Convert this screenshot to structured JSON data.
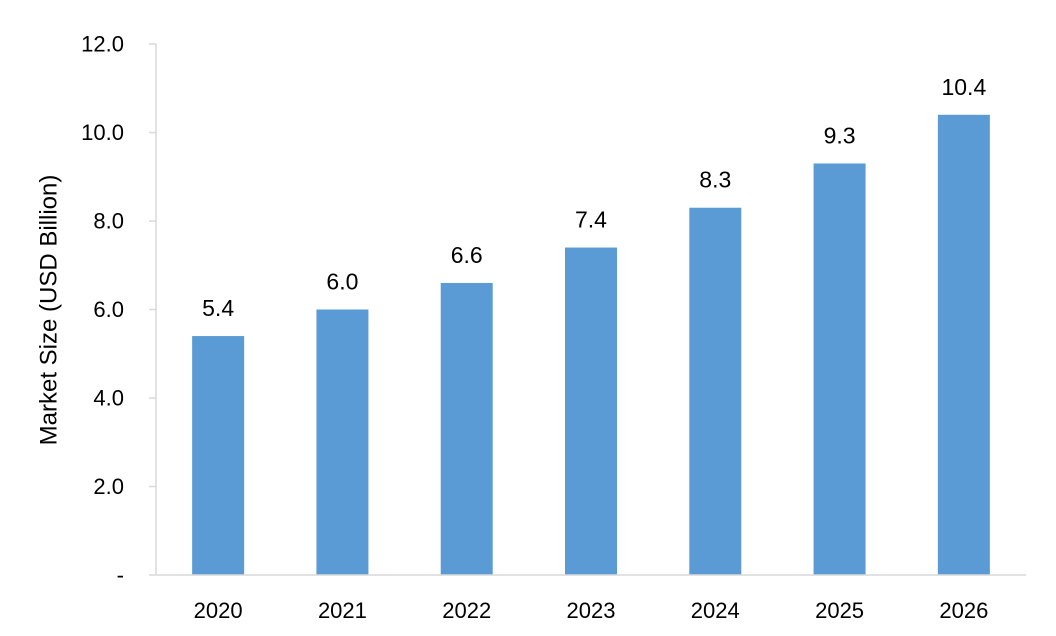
{
  "chart_data": {
    "type": "bar",
    "title": "",
    "xlabel": "",
    "ylabel": "Market Size (USD Billion)",
    "categories": [
      "2020",
      "2021",
      "2022",
      "2023",
      "2024",
      "2025",
      "2026"
    ],
    "values": [
      5.4,
      6.0,
      6.6,
      7.4,
      8.3,
      9.3,
      10.4
    ],
    "data_labels": [
      "5.4",
      "6.0",
      "6.6",
      "7.4",
      "8.3",
      "9.3",
      "10.4"
    ],
    "ylim": [
      0,
      12
    ],
    "yticks": [
      0,
      2,
      4,
      6,
      8,
      10,
      12
    ],
    "ytick_labels": [
      "-",
      "2.0",
      "4.0",
      "6.0",
      "8.0",
      "10.0",
      "12.0"
    ],
    "grid": false,
    "legend": "none",
    "bar_color": "#5b9bd5",
    "axis_color": "#d9d9d9"
  }
}
